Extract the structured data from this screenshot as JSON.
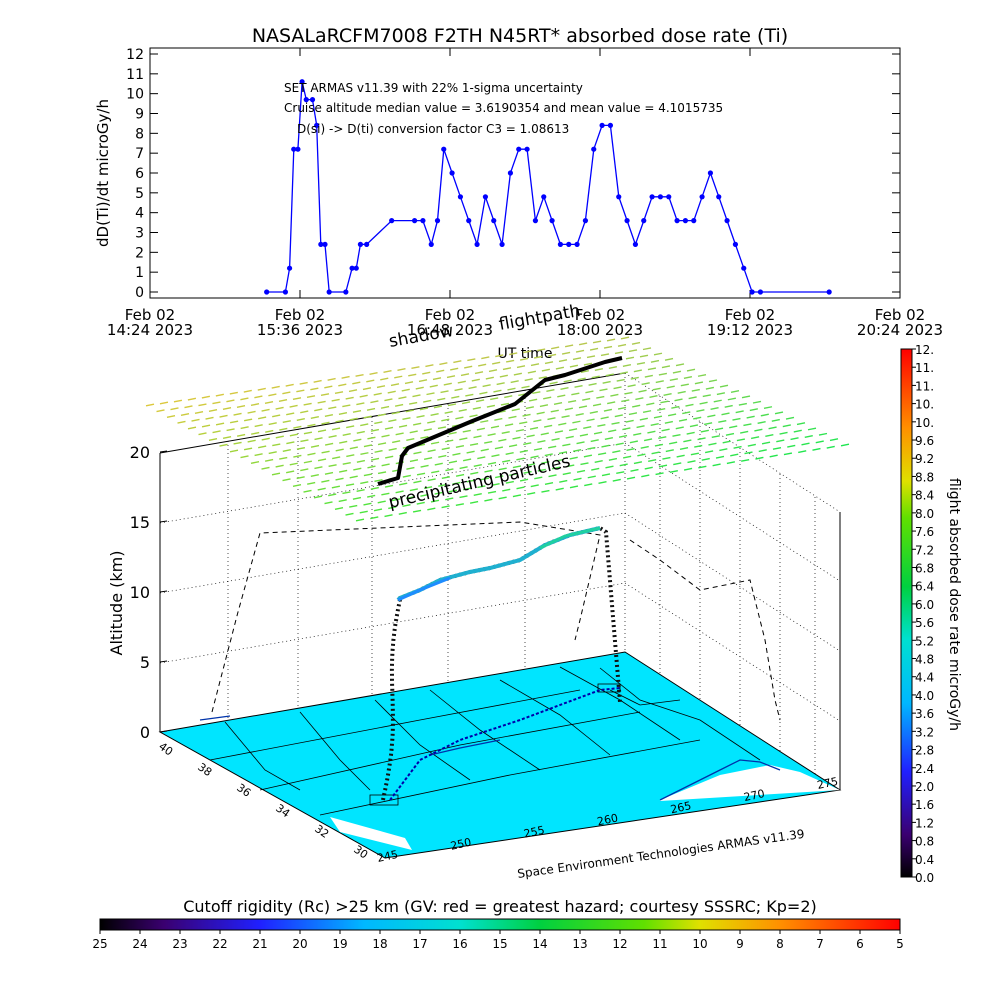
{
  "title": "NASALaRCFM7008  F2TH N45RT* absorbed dose rate (Ti)",
  "top_chart": {
    "ylabel": "dD(Ti)/dt microGy/h",
    "xlabel": "UT time",
    "yticks": [
      "0",
      "1",
      "2",
      "3",
      "4",
      "5",
      "6",
      "7",
      "8",
      "9",
      "10",
      "11",
      "12"
    ],
    "xticks": [
      {
        "date": "Feb 02",
        "time": "14:24 2023"
      },
      {
        "date": "Feb 02",
        "time": "15:36 2023"
      },
      {
        "date": "Feb 02",
        "time": "16:48 2023"
      },
      {
        "date": "Feb 02",
        "time": "18:00 2023"
      },
      {
        "date": "Feb 02",
        "time": "19:12 2023"
      },
      {
        "date": "Feb 02",
        "time": "20:24 2023"
      }
    ],
    "annotations": [
      "SET ARMAS v11.39 with 22% 1-sigma uncertainty",
      "Cruise altitude median value = 3.6190354 and mean value = 4.1015735",
      "D(si) -> D(ti) conversion factor C3 = 1.08613"
    ],
    "series_color": "#0000ff"
  },
  "chart_data": [
    {
      "type": "line",
      "title": "NASALaRCFM7008  F2TH N45RT* absorbed dose rate (Ti)",
      "xlabel": "UT time",
      "ylabel": "dD(Ti)/dt microGy/h",
      "ylim": [
        0,
        12
      ],
      "xlim": [
        "14:24",
        "20:24"
      ],
      "x": [
        "15:20",
        "15:29",
        "15:31",
        "15:33",
        "15:35",
        "15:37",
        "15:39",
        "15:42",
        "15:44",
        "15:46",
        "15:48",
        "15:50",
        "15:58",
        "16:01",
        "16:03",
        "16:05",
        "16:08",
        "16:20",
        "16:31",
        "16:35",
        "16:39",
        "16:42",
        "16:45",
        "16:49",
        "16:53",
        "16:57",
        "17:01",
        "17:05",
        "17:09",
        "17:13",
        "17:17",
        "17:21",
        "17:25",
        "17:29",
        "17:33",
        "17:37",
        "17:41",
        "17:45",
        "17:49",
        "17:53",
        "17:57",
        "18:01",
        "18:05",
        "18:09",
        "18:13",
        "18:17",
        "18:21",
        "18:25",
        "18:29",
        "18:33",
        "18:37",
        "18:41",
        "18:45",
        "18:49",
        "18:53",
        "18:57",
        "19:01",
        "19:05",
        "19:09",
        "19:13",
        "19:17",
        "19:50"
      ],
      "values": [
        0,
        0,
        1.2,
        7.2,
        7.2,
        10.6,
        9.7,
        9.7,
        8.4,
        2.4,
        2.4,
        0,
        0,
        1.2,
        1.2,
        2.4,
        2.4,
        3.6,
        3.6,
        3.6,
        2.4,
        3.6,
        7.2,
        6.0,
        4.8,
        3.6,
        2.4,
        4.8,
        3.6,
        2.4,
        6.0,
        7.2,
        7.2,
        3.6,
        4.8,
        3.6,
        2.4,
        2.4,
        2.4,
        3.6,
        7.2,
        8.4,
        8.4,
        4.8,
        3.6,
        2.4,
        3.6,
        4.8,
        4.8,
        4.8,
        3.6,
        3.6,
        3.6,
        4.8,
        6.0,
        4.8,
        3.6,
        2.4,
        1.2,
        0,
        0,
        0
      ],
      "series": [
        {
          "name": "",
          "color": "#0000ff"
        }
      ],
      "grid": false
    },
    {
      "type": "scatter",
      "title": "",
      "xlabel": "",
      "ylabel": "Altitude (km)",
      "zticks": [
        "0",
        "5",
        "10",
        "15",
        "20"
      ],
      "lon_ticks": [
        "245",
        "250",
        "255",
        "260",
        "265",
        "270",
        "275"
      ],
      "lat_ticks": [
        "30",
        "32",
        "34",
        "36",
        "38",
        "40"
      ],
      "annotations": [
        "shadow",
        "flightpath",
        "precipitating particles",
        "Space Environment Technologies ARMAS v11.39"
      ],
      "colorbar_label": "flight absorbed dose rate microGy/h",
      "colorbar_ticks": [
        "0.0",
        "0.4",
        "0.8",
        "1.2",
        "1.6",
        "2.0",
        "2.4",
        "2.8",
        "3.2",
        "3.6",
        "4.0",
        "4.4",
        "4.8",
        "5.2",
        "5.6",
        "6.0",
        "6.4",
        "6.8",
        "7.2",
        "7.6",
        "8.0",
        "8.4",
        "8.8",
        "9.2",
        "9.6",
        "10.",
        "10.",
        "11.",
        "11.",
        "12."
      ],
      "colorbar_range": [
        0,
        12
      ]
    },
    {
      "type": "heatmap",
      "title": "Cutoff rigidity (Rc) >25 km (GV: red = greatest hazard; courtesy SSSRC; Kp=2)",
      "colorbar_ticks": [
        "25",
        "24",
        "23",
        "22",
        "21",
        "20",
        "19",
        "18",
        "17",
        "16",
        "15",
        "14",
        "13",
        "12",
        "11",
        "10",
        "9",
        "8",
        "7",
        "6",
        "5"
      ],
      "colorbar_range": [
        25,
        5
      ],
      "dominant_value": 17
    }
  ],
  "map_3d": {
    "shadow_label": "shadow",
    "flightpath_label": "flightpath",
    "precip_label": "precipitating particles",
    "credit": "Space Environment Technologies ARMAS v11.39",
    "zlabel": "Altitude (km)",
    "zticks": [
      "0",
      "5",
      "10",
      "15",
      "20"
    ],
    "lon_ticks": [
      "245",
      "250",
      "255",
      "260",
      "265",
      "270",
      "275"
    ],
    "lat_ticks": [
      "30",
      "32",
      "34",
      "36",
      "38",
      "40"
    ],
    "map_color": "#00e5ff"
  },
  "right_colorbar": {
    "label": "flight absorbed dose rate microGy/h",
    "ticks": [
      "0.0",
      "0.4",
      "0.8",
      "1.2",
      "1.6",
      "2.0",
      "2.4",
      "2.8",
      "3.2",
      "3.6",
      "4.0",
      "4.4",
      "4.8",
      "5.2",
      "5.6",
      "6.0",
      "6.4",
      "6.8",
      "7.2",
      "7.6",
      "8.0",
      "8.4",
      "8.8",
      "9.2",
      "9.6",
      "10.",
      "10.",
      "11.",
      "11.",
      "12."
    ]
  },
  "bottom_colorbar": {
    "title": "Cutoff rigidity (Rc) >25 km (GV: red = greatest hazard; courtesy SSSRC; Kp=2)",
    "ticks": [
      "25",
      "24",
      "23",
      "22",
      "21",
      "20",
      "19",
      "18",
      "17",
      "16",
      "15",
      "14",
      "13",
      "12",
      "11",
      "10",
      "9",
      "8",
      "7",
      "6",
      "5"
    ]
  }
}
